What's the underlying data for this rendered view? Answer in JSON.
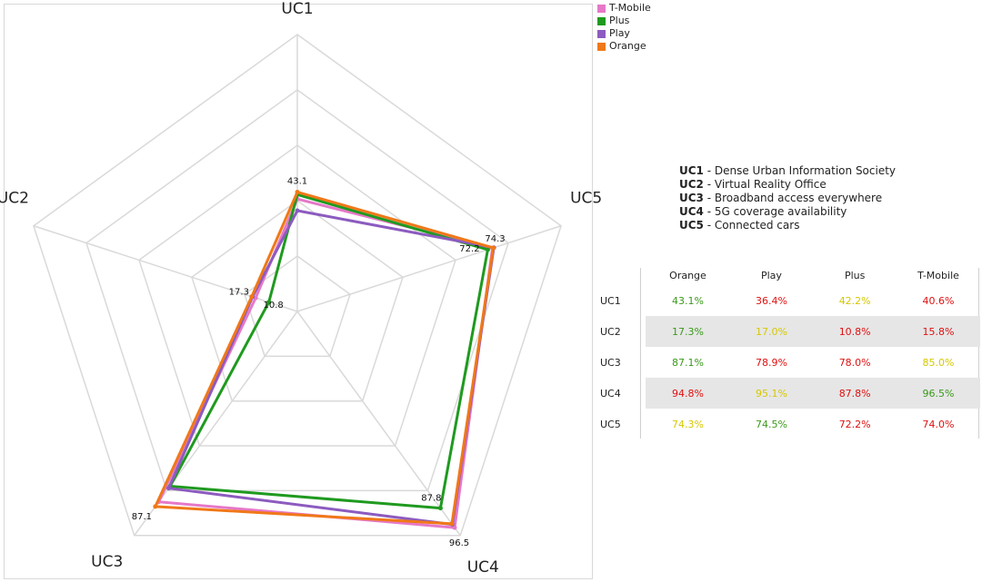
{
  "colors": {
    "T-Mobile": "#e678c8",
    "Plus": "#1f9a1f",
    "Play": "#8c5bbf",
    "Orange": "#f07818",
    "grid": "#d9d9d9",
    "good": "#3a9a1a",
    "mid": "#d6c800",
    "bad": "#e01010"
  },
  "chart_data": {
    "type": "radar",
    "axes": [
      "UC1",
      "UC5",
      "UC4",
      "UC3",
      "UC2"
    ],
    "range": [
      0,
      100
    ],
    "grid_levels": 5,
    "series": [
      {
        "name": "T-Mobile",
        "values": {
          "UC1": 40.6,
          "UC2": 15.8,
          "UC3": 85.0,
          "UC4": 96.5,
          "UC5": 74.0
        }
      },
      {
        "name": "Plus",
        "values": {
          "UC1": 42.2,
          "UC2": 10.8,
          "UC3": 78.0,
          "UC4": 87.8,
          "UC5": 72.2
        }
      },
      {
        "name": "Play",
        "values": {
          "UC1": 36.4,
          "UC2": 17.0,
          "UC3": 78.9,
          "UC4": 95.1,
          "UC5": 74.5
        }
      },
      {
        "name": "Orange",
        "values": {
          "UC1": 43.1,
          "UC2": 17.3,
          "UC3": 87.1,
          "UC4": 94.8,
          "UC5": 74.3
        }
      }
    ],
    "data_labels": [
      {
        "axis": "UC1",
        "text": "43.1"
      },
      {
        "axis": "UC5",
        "text": "74.3"
      },
      {
        "axis": "UC5",
        "text": "72.2"
      },
      {
        "axis": "UC4",
        "text": "87.8"
      },
      {
        "axis": "UC4",
        "text": "96.5"
      },
      {
        "axis": "UC3",
        "text": "87.1"
      },
      {
        "axis": "UC2",
        "text": "17.3"
      },
      {
        "axis": "UC2",
        "text": "10.8"
      }
    ],
    "legend": [
      "T-Mobile",
      "Plus",
      "Play",
      "Orange"
    ],
    "legend_position": "top-right"
  },
  "uc_descriptions": [
    {
      "key": "UC1",
      "text": "Dense Urban Information Society"
    },
    {
      "key": "UC2",
      "text": "Virtual Reality Office"
    },
    {
      "key": "UC3",
      "text": "Broadband access everywhere"
    },
    {
      "key": "UC4",
      "text": "5G coverage availability"
    },
    {
      "key": "UC5",
      "text": "Connected cars"
    }
  ],
  "table": {
    "columns": [
      "Orange",
      "Play",
      "Plus",
      "T-Mobile"
    ],
    "rows": [
      {
        "label": "UC1",
        "cells": [
          {
            "v": "43.1%",
            "c": "good"
          },
          {
            "v": "36.4%",
            "c": "bad"
          },
          {
            "v": "42.2%",
            "c": "mid"
          },
          {
            "v": "40.6%",
            "c": "bad"
          }
        ]
      },
      {
        "label": "UC2",
        "cells": [
          {
            "v": "17.3%",
            "c": "good"
          },
          {
            "v": "17.0%",
            "c": "mid"
          },
          {
            "v": "10.8%",
            "c": "bad"
          },
          {
            "v": "15.8%",
            "c": "bad"
          }
        ]
      },
      {
        "label": "UC3",
        "cells": [
          {
            "v": "87.1%",
            "c": "good"
          },
          {
            "v": "78.9%",
            "c": "bad"
          },
          {
            "v": "78.0%",
            "c": "bad"
          },
          {
            "v": "85.0%",
            "c": "mid"
          }
        ]
      },
      {
        "label": "UC4",
        "cells": [
          {
            "v": "94.8%",
            "c": "bad"
          },
          {
            "v": "95.1%",
            "c": "mid"
          },
          {
            "v": "87.8%",
            "c": "bad"
          },
          {
            "v": "96.5%",
            "c": "good"
          }
        ]
      },
      {
        "label": "UC5",
        "cells": [
          {
            "v": "74.3%",
            "c": "mid"
          },
          {
            "v": "74.5%",
            "c": "good"
          },
          {
            "v": "72.2%",
            "c": "bad"
          },
          {
            "v": "74.0%",
            "c": "bad"
          }
        ]
      }
    ]
  }
}
